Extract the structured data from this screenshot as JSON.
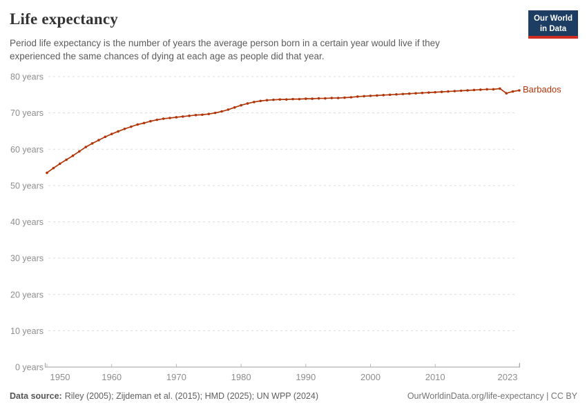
{
  "header": {
    "logo": {
      "line1": "Our World",
      "line2": "in Data"
    }
  },
  "chart_data": {
    "type": "line",
    "title": "Life expectancy",
    "subtitle": "Period life expectancy is the number of years the average person born in a certain year would live if they experienced the same chances of dying at each age as people did that year.",
    "x": [
      1950,
      1951,
      1952,
      1953,
      1954,
      1955,
      1956,
      1957,
      1958,
      1959,
      1960,
      1961,
      1962,
      1963,
      1964,
      1965,
      1966,
      1967,
      1968,
      1969,
      1970,
      1971,
      1972,
      1973,
      1974,
      1975,
      1976,
      1977,
      1978,
      1979,
      1980,
      1981,
      1982,
      1983,
      1984,
      1985,
      1986,
      1987,
      1988,
      1989,
      1990,
      1991,
      1992,
      1993,
      1994,
      1995,
      1996,
      1997,
      1998,
      1999,
      2000,
      2001,
      2002,
      2003,
      2004,
      2005,
      2006,
      2007,
      2008,
      2009,
      2010,
      2011,
      2012,
      2013,
      2014,
      2015,
      2016,
      2017,
      2018,
      2019,
      2020,
      2021,
      2022,
      2023
    ],
    "series": [
      {
        "name": "Barbados",
        "color": "#b13507",
        "values": [
          53.5,
          54.8,
          56.0,
          57.1,
          58.2,
          59.4,
          60.6,
          61.6,
          62.5,
          63.4,
          64.2,
          64.9,
          65.6,
          66.2,
          66.8,
          67.2,
          67.7,
          68.1,
          68.4,
          68.6,
          68.8,
          69.0,
          69.2,
          69.4,
          69.5,
          69.7,
          70.0,
          70.4,
          70.9,
          71.5,
          72.1,
          72.6,
          73.0,
          73.3,
          73.5,
          73.6,
          73.7,
          73.7,
          73.8,
          73.8,
          73.9,
          73.9,
          74.0,
          74.0,
          74.1,
          74.1,
          74.2,
          74.3,
          74.5,
          74.6,
          74.7,
          74.8,
          74.9,
          75.0,
          75.1,
          75.2,
          75.3,
          75.4,
          75.5,
          75.6,
          75.7,
          75.8,
          75.9,
          76.0,
          76.1,
          76.2,
          76.3,
          76.4,
          76.5,
          76.5,
          76.7,
          75.4,
          75.9,
          76.2
        ]
      }
    ],
    "xlabel": "",
    "ylabel": "",
    "xlim": [
      1950,
      2023
    ],
    "ylim": [
      0,
      80
    ],
    "xticks": [
      1950,
      1960,
      1970,
      1980,
      1990,
      2000,
      2010,
      2023
    ],
    "yticks": [
      0,
      10,
      20,
      30,
      40,
      50,
      60,
      70,
      80
    ],
    "ytick_suffix": " years",
    "grid": "horizontal-dashed",
    "legend": "end-of-line-label"
  },
  "footer": {
    "source_label": "Data source:",
    "source_text": "Riley (2005); Zijdeman et al. (2015); HMD (2025); UN WPP (2024)",
    "credit": "OurWorldinData.org/life-expectancy | CC BY"
  },
  "colors": {
    "series": "#b13507",
    "logo_bg": "#1d3d63",
    "logo_accent": "#cf2d24",
    "gridline": "#dcdcdc",
    "axis": "#9e9e9e",
    "tick_label": "#8d8d8d"
  }
}
